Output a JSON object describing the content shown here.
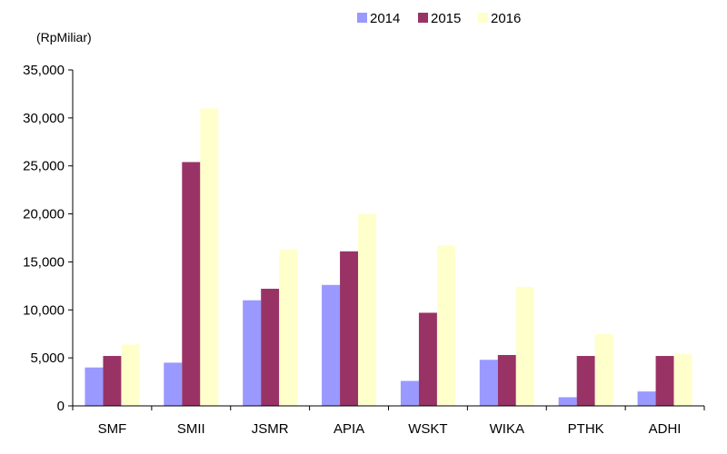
{
  "chart_data": {
    "type": "bar",
    "unit_label": "(RpMiliar)",
    "categories": [
      "SMF",
      "SMII",
      "JSMR",
      "APIA",
      "WSKT",
      "WIKA",
      "PTHK",
      "ADHI"
    ],
    "series": [
      {
        "name": "2014",
        "color": "#9999ff",
        "values": [
          4000,
          4500,
          11000,
          12600,
          2600,
          4800,
          900,
          1500
        ]
      },
      {
        "name": "2015",
        "color": "#993366",
        "values": [
          5200,
          25400,
          12200,
          16100,
          9700,
          5300,
          5200,
          5200
        ]
      },
      {
        "name": "2016",
        "color": "#ffffcc",
        "values": [
          6400,
          31000,
          16300,
          20000,
          16700,
          12400,
          7500,
          5400
        ]
      }
    ],
    "yticks": [
      "0",
      "5,000",
      "10,000",
      "15,000",
      "20,000",
      "25,000",
      "30,000",
      "35,000"
    ],
    "ylim": [
      0,
      35000
    ],
    "ytick_step": 5000,
    "grid": false,
    "legend_position": "top"
  }
}
